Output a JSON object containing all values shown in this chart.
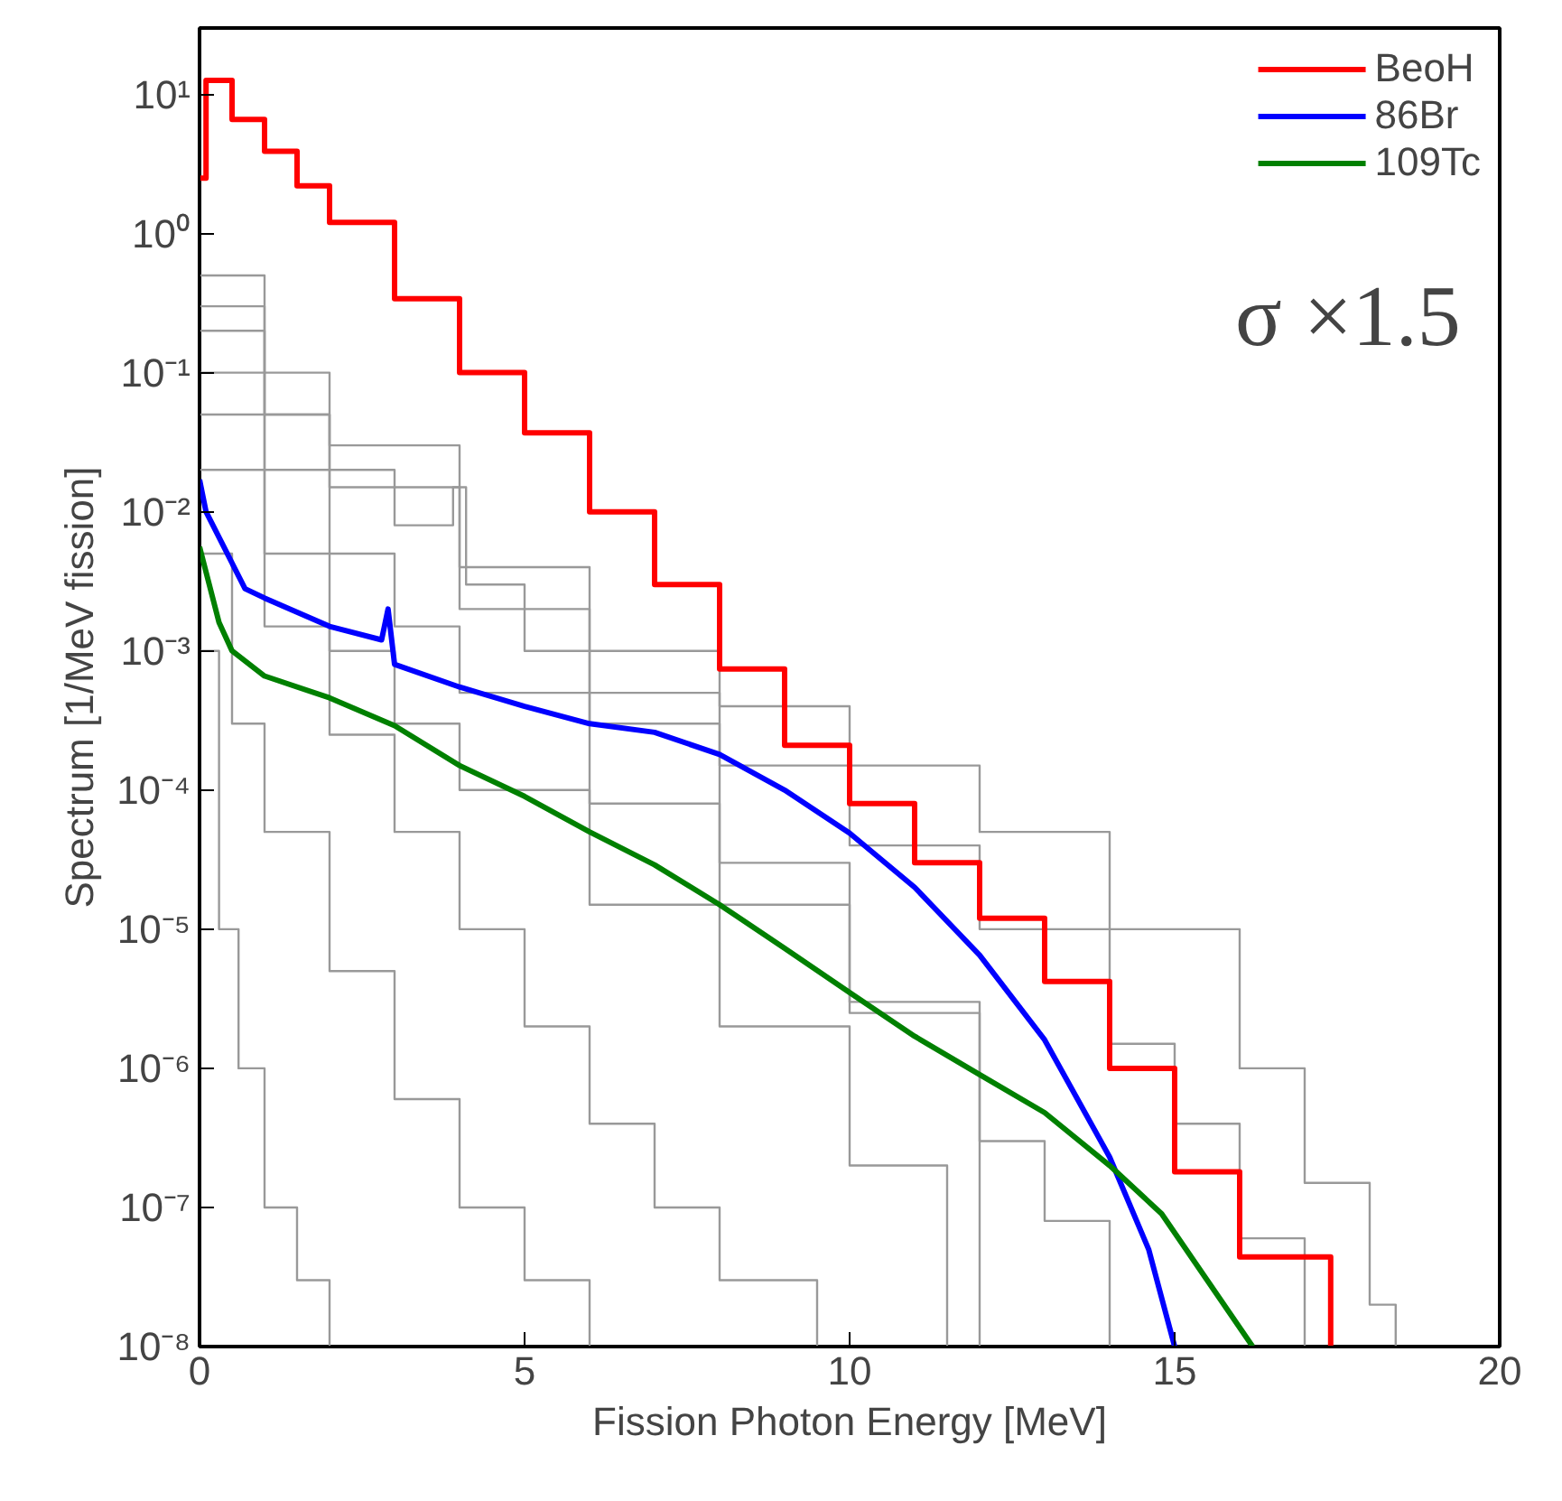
{
  "chart_data": {
    "type": "line",
    "xlabel": "Fission Photon Energy [MeV]",
    "ylabel": "Spectrum [1/MeV fission]",
    "log": "y",
    "grid": false,
    "legend": "top right",
    "line_style": "solid",
    "xlim": [
      0,
      20
    ],
    "ylim": [
      1e-08,
      30
    ],
    "xticks": [
      0,
      5,
      10,
      15,
      20
    ],
    "yticks": [
      {
        "value": 1e-08,
        "label": "10⁻⁸"
      },
      {
        "value": 1e-07,
        "label": "10⁻⁷"
      },
      {
        "value": 1e-06,
        "label": "10⁻⁶"
      },
      {
        "value": 1e-05,
        "label": "10⁻⁵"
      },
      {
        "value": 0.0001,
        "label": "10⁻⁴"
      },
      {
        "value": 0.001,
        "label": "10⁻³"
      },
      {
        "value": 0.01,
        "label": "10⁻²"
      },
      {
        "value": 0.1,
        "label": "10⁻¹"
      },
      {
        "value": 1,
        "label": "10⁰"
      },
      {
        "value": 10,
        "label": "10¹"
      }
    ],
    "annotations": [
      "σ ×1.5"
    ],
    "series": [
      {
        "type": "step",
        "color": "#999999",
        "x": [
          0,
          1,
          2,
          4,
          6,
          8,
          10,
          12,
          14,
          16,
          17,
          18,
          18.4
        ],
        "values": [
          0.5,
          0.1,
          0.03,
          0.004,
          0.001,
          0.0004,
          0.00015,
          5e-05,
          1e-05,
          1e-06,
          1.5e-07,
          2e-08,
          1e-08
        ]
      },
      {
        "type": "step",
        "color": "#999999",
        "x": [
          0,
          1,
          2,
          4,
          6,
          8,
          10,
          12,
          14,
          15,
          16,
          17
        ],
        "values": [
          0.3,
          0.05,
          0.015,
          0.002,
          0.0005,
          0.00015,
          4e-05,
          1e-05,
          1.5e-06,
          4e-07,
          6e-08,
          1e-08
        ]
      },
      {
        "type": "step",
        "color": "#999999",
        "x": [
          0,
          1,
          2,
          3,
          3.9,
          4.1,
          5,
          6,
          8,
          10,
          12
        ],
        "values": [
          0.2,
          0.05,
          0.02,
          0.008,
          0.015,
          0.003,
          0.001,
          0.0003,
          3e-05,
          3e-06,
          1e-08
        ]
      },
      {
        "type": "step",
        "color": "#999999",
        "x": [
          0,
          1,
          2,
          3,
          4,
          6,
          8,
          10,
          12,
          13,
          14
        ],
        "values": [
          0.1,
          0.02,
          0.005,
          0.0015,
          0.0005,
          8e-05,
          1.5e-05,
          2.5e-06,
          3e-07,
          8e-08,
          1e-08
        ]
      },
      {
        "type": "step",
        "color": "#999999",
        "x": [
          0,
          1,
          2,
          3,
          4,
          6,
          8,
          10,
          11.5
        ],
        "values": [
          0.05,
          0.005,
          0.001,
          0.0003,
          0.0001,
          1.5e-05,
          2e-06,
          2e-07,
          1e-08
        ]
      },
      {
        "type": "step",
        "color": "#999999",
        "x": [
          0,
          1,
          2,
          3,
          4,
          5,
          6,
          7,
          8,
          9.5
        ],
        "values": [
          0.02,
          0.0015,
          0.00025,
          5e-05,
          1e-05,
          2e-06,
          4e-07,
          1e-07,
          3e-08,
          1e-08
        ]
      },
      {
        "type": "step",
        "color": "#999999",
        "x": [
          0,
          0.5,
          1,
          2,
          3,
          4,
          5,
          6
        ],
        "values": [
          0.005,
          0.0003,
          5e-05,
          5e-06,
          6e-07,
          1e-07,
          3e-08,
          1e-08
        ]
      },
      {
        "type": "step",
        "color": "#999999",
        "x": [
          0,
          0.3,
          0.6,
          1,
          1.5,
          2
        ],
        "values": [
          0.001,
          1e-05,
          1e-06,
          1e-07,
          3e-08,
          1e-08
        ]
      },
      {
        "type": "step",
        "name": "BeoH",
        "color": "#ff0000",
        "x": [
          0,
          0.1,
          0.5,
          1,
          1.5,
          2,
          3,
          4,
          5,
          6,
          7,
          8,
          9,
          10,
          11,
          12,
          13,
          14,
          15,
          16,
          17.4
        ],
        "values": [
          2.5,
          12.6,
          6.6,
          3.9,
          2.2,
          1.2,
          0.34,
          0.1,
          0.037,
          0.01,
          0.003,
          0.00074,
          0.00021,
          8e-05,
          3e-05,
          1.2e-05,
          4.2e-06,
          1e-06,
          1.8e-07,
          4.4e-08,
          1e-08
        ]
      },
      {
        "name": "86Br",
        "color": "#0000ff",
        "x": [
          0,
          0.1,
          0.7,
          1,
          2,
          2.8,
          2.9,
          3,
          4,
          5,
          6,
          7,
          8,
          9,
          10,
          11,
          12,
          13,
          14,
          14.6,
          15
        ],
        "values": [
          0.017,
          0.01,
          0.0028,
          0.0024,
          0.0015,
          0.0012,
          0.002,
          0.0008,
          0.00055,
          0.0004,
          0.0003,
          0.00026,
          0.00018,
          0.0001,
          4.9e-05,
          2e-05,
          6.5e-06,
          1.6e-06,
          2.3e-07,
          5e-08,
          1e-08
        ]
      },
      {
        "name": "109Tc",
        "color": "#008000",
        "x": [
          0,
          0.3,
          0.5,
          1,
          2,
          3,
          4,
          5,
          6,
          7,
          8,
          9,
          10,
          11,
          12,
          13,
          14,
          14.8,
          15.5,
          16.2
        ],
        "values": [
          0.0056,
          0.0016,
          0.001,
          0.00066,
          0.00046,
          0.00029,
          0.00015,
          9e-05,
          5e-05,
          2.9e-05,
          1.5e-05,
          7.3e-06,
          3.5e-06,
          1.7e-06,
          9e-07,
          4.8e-07,
          2e-07,
          9e-08,
          3e-08,
          1e-08
        ]
      }
    ]
  }
}
